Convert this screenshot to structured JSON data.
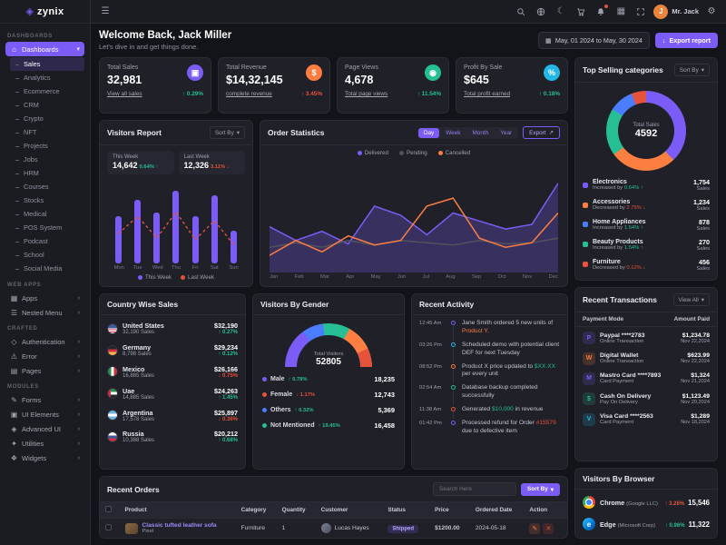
{
  "colors": {
    "primary": "#7b5cf6",
    "success": "#26bf94",
    "danger": "#e6533c",
    "warning": "#fd7e41",
    "info": "#23b7e5"
  },
  "brand": {
    "name": "zynix"
  },
  "topbar": {
    "user_name": "Mr. Jack",
    "icons": [
      "menu-icon",
      "search-icon",
      "language-icon",
      "moon-icon",
      "cart-icon",
      "bell-icon",
      "grid-icon",
      "fullscreen-icon",
      "settings-icon"
    ]
  },
  "sidebar": {
    "sections": [
      {
        "label": "DASHBOARDS",
        "parent": {
          "label": "Dashboards"
        },
        "active_child": "Sales",
        "children": [
          "Sales",
          "Analytics",
          "Ecommerce",
          "CRM",
          "Crypto",
          "NFT",
          "Projects",
          "Jobs",
          "HRM",
          "Courses",
          "Stocks",
          "Medical",
          "POS System",
          "Podcast",
          "School",
          "Social Media"
        ]
      },
      {
        "label": "WEB APPS",
        "items": [
          {
            "label": "Apps",
            "icon": "apps-icon"
          },
          {
            "label": "Nested Menu",
            "icon": "menu-icon"
          }
        ]
      },
      {
        "label": "CRAFTED",
        "items": [
          {
            "label": "Authentication",
            "icon": "lock-icon"
          },
          {
            "label": "Error",
            "icon": "error-icon"
          },
          {
            "label": "Pages",
            "icon": "pages-icon"
          }
        ]
      },
      {
        "label": "MODULES",
        "items": [
          {
            "label": "Forms",
            "icon": "forms-icon"
          },
          {
            "label": "UI Elements",
            "icon": "ui-icon"
          },
          {
            "label": "Advanced UI",
            "icon": "advanced-icon"
          },
          {
            "label": "Utilities",
            "icon": "utilities-icon"
          },
          {
            "label": "Widgets",
            "icon": "widgets-icon"
          }
        ]
      }
    ]
  },
  "welcome": {
    "title": "Welcome Back, Jack Miller",
    "subtitle": "Let's dive in and get things done."
  },
  "actions": {
    "date_range": "May, 01 2024 to May, 30 2024",
    "export_label": "Export report"
  },
  "stats": [
    {
      "title": "Total Sales",
      "value": "32,981",
      "link": "View all sales",
      "change": "0.29%",
      "dir": "up",
      "change_color": "#26bf94",
      "icon": "bag",
      "icon_bg": "#7b5cf6"
    },
    {
      "title": "Total Revenue",
      "value": "$14,32,145",
      "link": "complete revenue",
      "change": "3.45%",
      "dir": "up",
      "change_color": "#e6533c",
      "icon": "dollar",
      "icon_bg": "#fd7e41"
    },
    {
      "title": "Page Views",
      "value": "4,678",
      "link": "Total page views",
      "change": "11.54%",
      "dir": "up",
      "change_color": "#26bf94",
      "icon": "eye",
      "icon_bg": "#26bf94"
    },
    {
      "title": "Profit By Sale",
      "value": "$645",
      "link": "Total profit earned",
      "change": "0.18%",
      "dir": "up",
      "change_color": "#26bf94",
      "icon": "chart",
      "icon_bg": "#23b7e5"
    }
  ],
  "top_categories": {
    "title": "Top Selling categories",
    "sort_label": "Sort By",
    "center_label": "Total Sales",
    "center_value": "4592",
    "sales_suffix": "Sales",
    "items": [
      {
        "name": "Electronics",
        "trend": "Increased by",
        "pct": "0.64%",
        "dir": "up",
        "sales": "1,754",
        "color": "#7b5cf6"
      },
      {
        "name": "Accessories",
        "trend": "Decreased by",
        "pct": "2.75%",
        "dir": "down",
        "sales": "1,234",
        "color": "#fd7e41"
      },
      {
        "name": "Home Appliances",
        "trend": "Increased by",
        "pct": "1.54%",
        "dir": "up",
        "sales": "878",
        "color": "#4a7dff"
      },
      {
        "name": "Beauty Products",
        "trend": "Increased by",
        "pct": "1.54%",
        "dir": "up",
        "sales": "270",
        "color": "#26bf94"
      },
      {
        "name": "Furniture",
        "trend": "Decreased by",
        "pct": "0.12%",
        "dir": "down",
        "sales": "456",
        "color": "#e6533c"
      }
    ],
    "donut_segments": [
      {
        "color": "#7b5cf6",
        "value": 38
      },
      {
        "color": "#fd7e41",
        "value": 27
      },
      {
        "color": "#26bf94",
        "value": 19
      },
      {
        "color": "#4a7dff",
        "value": 10
      },
      {
        "color": "#e6533c",
        "value": 6
      }
    ]
  },
  "visitors_report": {
    "title": "Visitors Report",
    "sort_label": "Sort By",
    "this_week": {
      "label": "This Week",
      "value": "14,642",
      "pct": "0.64%",
      "dir": "up"
    },
    "last_week": {
      "label": "Last Week",
      "value": "12,326",
      "pct": "3.11%",
      "dir": "down"
    },
    "chart_data": {
      "type": "bar",
      "categories": [
        "Mon",
        "Tue",
        "Wed",
        "Thu",
        "Fri",
        "Sat",
        "Sun"
      ],
      "series": [
        {
          "name": "This Week",
          "type": "bar",
          "color": "#7b5cf6",
          "values": [
            55,
            75,
            60,
            85,
            55,
            80,
            38
          ]
        },
        {
          "name": "Last Week",
          "type": "line",
          "color": "#e6533c",
          "values": [
            35,
            55,
            30,
            60,
            28,
            50,
            22
          ]
        }
      ],
      "ylim": [
        0,
        100
      ]
    }
  },
  "order_statistics": {
    "title": "Order Statistics",
    "range_tabs": [
      "Day",
      "Week",
      "Month",
      "Year"
    ],
    "active_tab": "Day",
    "export_label": "Export",
    "legend": [
      {
        "name": "Delivered",
        "color": "#7b5cf6"
      },
      {
        "name": "Pending",
        "color": "#52525e"
      },
      {
        "name": "Cancelled",
        "color": "#fd7e41"
      }
    ],
    "chart_data": {
      "type": "area",
      "x": [
        "Jan",
        "Feb",
        "Mar",
        "Apr",
        "May",
        "Jun",
        "Jul",
        "Aug",
        "Sep",
        "Oct",
        "Nov",
        "Dec"
      ],
      "ylim": [
        0,
        100
      ],
      "series": [
        {
          "name": "Delivered",
          "color": "#7b5cf6",
          "fill": true,
          "values": [
            40,
            28,
            36,
            25,
            58,
            50,
            33,
            52,
            45,
            38,
            42,
            78
          ]
        },
        {
          "name": "Pending",
          "color": "#52525e",
          "fill": false,
          "values": [
            22,
            26,
            22,
            28,
            24,
            28,
            26,
            24,
            28,
            25,
            26,
            30
          ]
        },
        {
          "name": "Cancelled",
          "color": "#fd7e41",
          "fill": false,
          "values": [
            15,
            28,
            18,
            32,
            24,
            28,
            58,
            65,
            30,
            22,
            26,
            52
          ]
        }
      ]
    }
  },
  "country_sales": {
    "title": "Country Wise Sales",
    "rows": [
      {
        "country": "United States",
        "flag": "us",
        "sales": "32,190 Sales",
        "amount": "$32,190",
        "pct": "0.27%",
        "dir": "up"
      },
      {
        "country": "Germany",
        "flag": "de",
        "sales": "8,798 Sales",
        "amount": "$29,234",
        "pct": "0.12%",
        "dir": "up"
      },
      {
        "country": "Mexico",
        "flag": "mx",
        "sales": "16,885 Sales",
        "amount": "$26,166",
        "pct": "0.75%",
        "dir": "down"
      },
      {
        "country": "Uae",
        "flag": "ae",
        "sales": "14,885 Sales",
        "amount": "$24,263",
        "pct": "1.45%",
        "dir": "up"
      },
      {
        "country": "Argentina",
        "flag": "ar",
        "sales": "17,578 Sales",
        "amount": "$25,897",
        "pct": "0.36%",
        "dir": "down"
      },
      {
        "country": "Russia",
        "flag": "ru",
        "sales": "10,388 Sales",
        "amount": "$20,212",
        "pct": "0.68%",
        "dir": "up"
      }
    ]
  },
  "visitors_gender": {
    "title": "Visitors By Gender",
    "center_label": "Total Visitors",
    "center_value": "52805",
    "gauge_segments": [
      {
        "color": "#7b5cf6",
        "value": 15
      },
      {
        "color": "#4a7dff",
        "value": 8
      },
      {
        "color": "#26bf94",
        "value": 10
      },
      {
        "color": "#fd7e41",
        "value": 10
      },
      {
        "color": "#e6533c",
        "value": 7
      }
    ],
    "rows": [
      {
        "label": "Male",
        "pct": "0.78%",
        "dir": "up",
        "value": "18,235",
        "color": "#7b5cf6"
      },
      {
        "label": "Female",
        "pct": "1.17%",
        "dir": "down",
        "value": "12,743",
        "color": "#e6533c"
      },
      {
        "label": "Others",
        "pct": "0.32%",
        "dir": "up",
        "value": "5,369",
        "color": "#4a7dff"
      },
      {
        "label": "Not Mentioned",
        "pct": "19.45%",
        "dir": "up",
        "value": "16,458",
        "color": "#26bf94"
      }
    ]
  },
  "recent_activity": {
    "title": "Recent Activity",
    "items": [
      {
        "time": "12:45 Am",
        "pre": "Jane Smith ordered 5 new units of ",
        "highlight": "Product Y.",
        "post": "",
        "hl_color": "#fd7e41",
        "dot": "#7b5cf6"
      },
      {
        "time": "03:26 Pm",
        "pre": "Scheduled demo with potential client DEF for next Tuesday",
        "highlight": "",
        "post": "",
        "hl_color": "",
        "dot": "#23b7e5"
      },
      {
        "time": "08:52 Pm",
        "pre": "Product X price updated to ",
        "highlight": "$XX.XX",
        "post": " per every unit",
        "hl_color": "#26bf94",
        "dot": "#fd7e41"
      },
      {
        "time": "02:54 Am",
        "pre": "Database backup completed successfully",
        "highlight": "",
        "post": "",
        "hl_color": "",
        "dot": "#26bf94"
      },
      {
        "time": "11:38 Am",
        "pre": "Generated ",
        "highlight": "$10,000",
        "post": " in revenue",
        "hl_color": "#26bf94",
        "dot": "#e6533c"
      },
      {
        "time": "01:42 Pm",
        "pre": "Processed refund for Order ",
        "highlight": "#15579",
        "post": " due to defective item",
        "hl_color": "#e6533c",
        "dot": "#7b5cf6"
      }
    ]
  },
  "recent_transactions": {
    "title": "Recent Transactions",
    "view_all": "View All",
    "col_mode": "Payment Mode",
    "col_amount": "Amount Paid",
    "rows": [
      {
        "name": "Paypal ****2783",
        "sub": "Online Transaction",
        "amount": "$1,234.78",
        "date": "Nov 22,2024",
        "icon": "P",
        "icon_bg": "#7b5cf6"
      },
      {
        "name": "Digital Wallet",
        "sub": "Online Transaction",
        "amount": "$623.99",
        "date": "Nov 22,2024",
        "icon": "W",
        "icon_bg": "#fd7e41"
      },
      {
        "name": "Mastro Card ****7893",
        "sub": "Card Payment",
        "amount": "$1,324",
        "date": "Nov 21,2024",
        "icon": "M",
        "icon_bg": "#7b5cf6"
      },
      {
        "name": "Cash On Delivery",
        "sub": "Pay On Delivery",
        "amount": "$1,123.49",
        "date": "Nov 20,2024",
        "icon": "$",
        "icon_bg": "#26bf94"
      },
      {
        "name": "Visa Card ****2563",
        "sub": "Card Payment",
        "amount": "$1,289",
        "date": "Nov 18,2024",
        "icon": "V",
        "icon_bg": "#23b7e5"
      }
    ]
  },
  "recent_orders": {
    "title": "Recent Orders",
    "search_placeholder": "Search Here",
    "sort_label": "Sort By",
    "columns": [
      "Product",
      "Category",
      "Quantity",
      "Customer",
      "Status",
      "Price",
      "Ordered Date",
      "Action"
    ],
    "rows": [
      {
        "product": "Classic tufted leather sofa",
        "brand": "Pixel",
        "category": "Furniture",
        "qty": "1",
        "customer": "Lucas Hayes",
        "status": "Shipped",
        "price": "$1200.00",
        "date": "2024-05-18"
      }
    ]
  },
  "visitors_browser": {
    "title": "Visitors By Browser",
    "rows": [
      {
        "name": "Chrome",
        "company": "(Google LLC)",
        "pct": "3.26%",
        "dir": "up",
        "pct_color": "#e6533c",
        "value": "15,546",
        "icon": "chrome"
      },
      {
        "name": "Edge",
        "company": "(Microsoft Corp)",
        "pct": "0.96%",
        "dir": "up",
        "pct_color": "#26bf94",
        "value": "11,322",
        "icon": "edge"
      }
    ]
  }
}
